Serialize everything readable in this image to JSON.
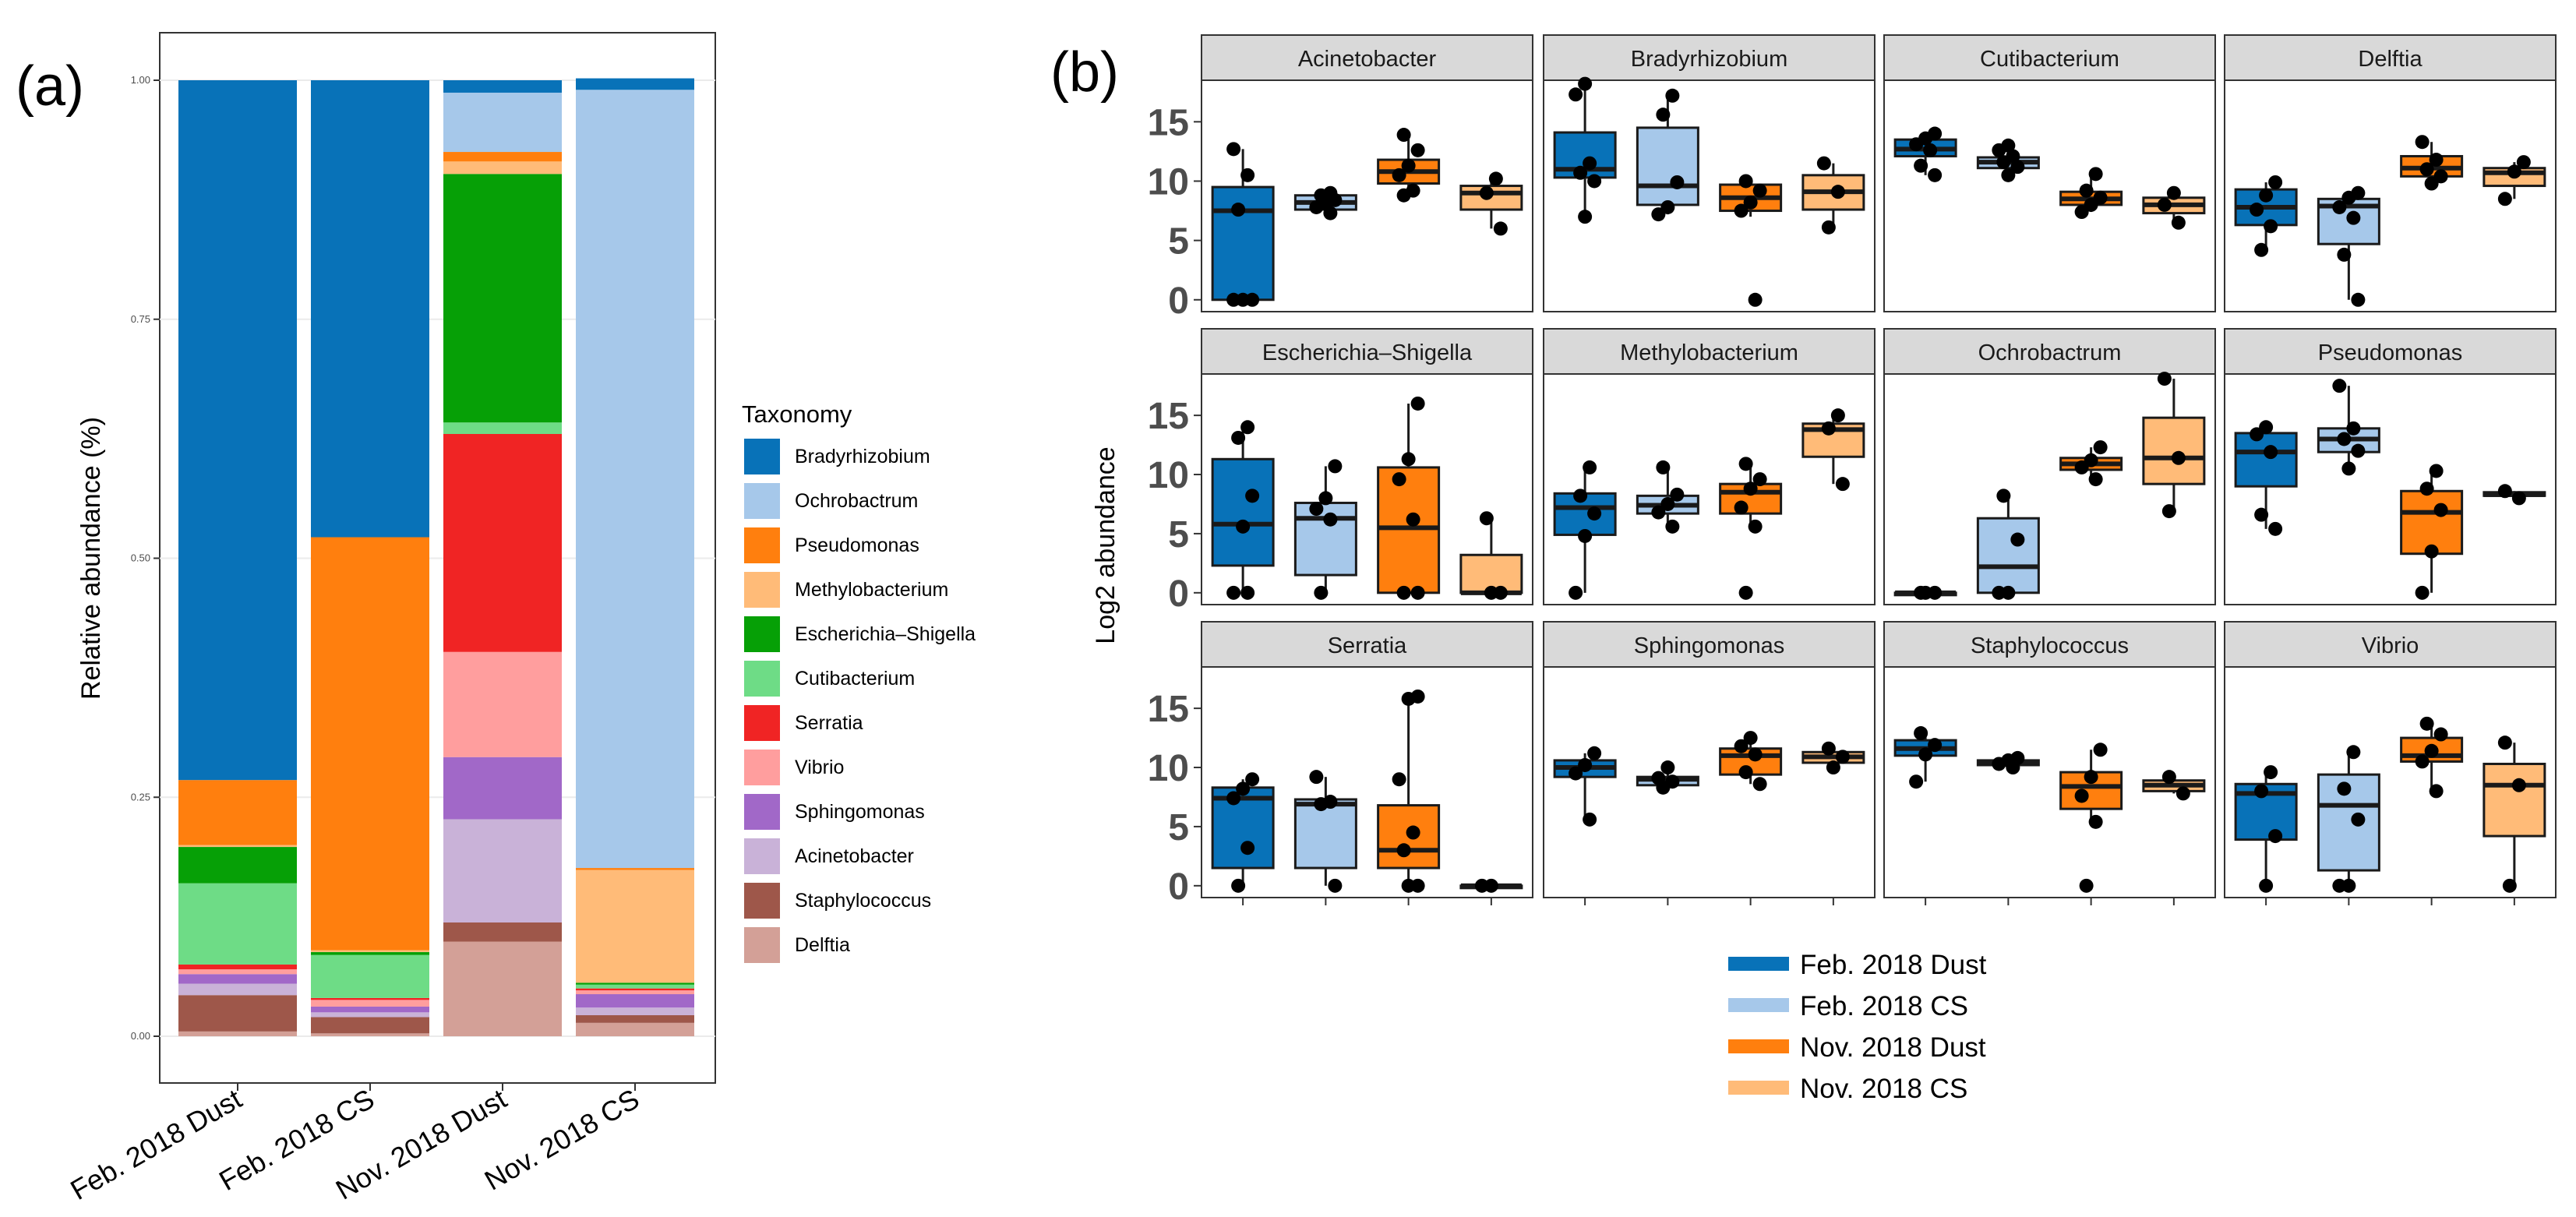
{
  "panel_labels": {
    "a": "(a)",
    "b": "(b)"
  },
  "chart_data": [
    {
      "type": "bar",
      "stacked": true,
      "ylabel": "Relative abundance (%)",
      "xlabel": "",
      "ylim": [
        0,
        1
      ],
      "yticks": [
        "0.00",
        "0.25",
        "0.50",
        "0.75",
        "1.00"
      ],
      "categories": [
        "Feb. 2018 Dust",
        "Feb. 2018 CS",
        "Nov. 2018 Dust",
        "Nov. 2018 CS"
      ],
      "legend_title": "Taxonomy",
      "legend_position": "right",
      "series": [
        {
          "name": "Bradyrhizobium",
          "color": "#0872B8",
          "values": [
            0.732,
            0.478,
            0.013,
            0.012
          ]
        },
        {
          "name": "Ochrobactrum",
          "color": "#A6C8EA",
          "values": [
            0.0,
            0.0,
            0.062,
            0.814
          ]
        },
        {
          "name": "Pseudomonas",
          "color": "#FF7F0E",
          "values": [
            0.068,
            0.432,
            0.01,
            0.002
          ]
        },
        {
          "name": "Methylobacterium",
          "color": "#FFBB78",
          "values": [
            0.002,
            0.002,
            0.013,
            0.118
          ]
        },
        {
          "name": "Escherichia–Shigella",
          "color": "#06A006",
          "values": [
            0.038,
            0.003,
            0.26,
            0.002
          ]
        },
        {
          "name": "Cutibacterium",
          "color": "#6EDC86",
          "values": [
            0.085,
            0.045,
            0.012,
            0.004
          ]
        },
        {
          "name": "Serratia",
          "color": "#F02424",
          "values": [
            0.005,
            0.002,
            0.228,
            0.002
          ]
        },
        {
          "name": "Vibrio",
          "color": "#FF9E9E",
          "values": [
            0.005,
            0.007,
            0.11,
            0.004
          ]
        },
        {
          "name": "Sphingomonas",
          "color": "#A168C8",
          "values": [
            0.01,
            0.006,
            0.065,
            0.014
          ]
        },
        {
          "name": "Acinetobacter",
          "color": "#C9B2D8",
          "values": [
            0.012,
            0.005,
            0.108,
            0.008
          ]
        },
        {
          "name": "Staphylococcus",
          "color": "#9E574A",
          "values": [
            0.038,
            0.017,
            0.02,
            0.008
          ]
        },
        {
          "name": "Delftia",
          "color": "#D3A097",
          "values": [
            0.005,
            0.003,
            0.099,
            0.014
          ]
        }
      ]
    },
    {
      "type": "box",
      "ylabel": "Log2 abundance",
      "ylim": [
        -1,
        18.5
      ],
      "yticks": [
        0,
        5,
        10,
        15
      ],
      "groups": [
        "Feb. 2018 Dust",
        "Feb. 2018 CS",
        "Nov. 2018 Dust",
        "Nov. 2018 CS"
      ],
      "group_colors": [
        "#0872B8",
        "#A6C8EA",
        "#FF7F0E",
        "#FFBB78"
      ],
      "legend_position": "bottom",
      "facets": [
        {
          "title": "Acinetobacter",
          "boxes": [
            {
              "q1": 0,
              "median": 7.5,
              "q3": 9.5,
              "low": 0,
              "high": 12.7,
              "points": [
                0,
                0,
                0,
                7.6,
                10.5,
                12.7
              ]
            },
            {
              "q1": 7.6,
              "median": 8.2,
              "q3": 8.8,
              "low": 7.3,
              "high": 9.0,
              "points": [
                7.3,
                7.8,
                8.1,
                8.4,
                8.8,
                9.0
              ]
            },
            {
              "q1": 9.8,
              "median": 10.8,
              "q3": 11.8,
              "low": 8.8,
              "high": 13.9,
              "points": [
                8.8,
                9.2,
                10.5,
                11.3,
                12.6,
                13.9
              ]
            },
            {
              "q1": 7.6,
              "median": 9.0,
              "q3": 9.6,
              "low": 6.0,
              "high": 10.2,
              "points": [
                6.0,
                9.0,
                10.2
              ]
            }
          ]
        },
        {
          "title": "Bradyrhizobium",
          "boxes": [
            {
              "q1": 10.3,
              "median": 11.0,
              "q3": 14.1,
              "low": 7.0,
              "high": 18.2,
              "points": [
                7.0,
                10.0,
                10.7,
                11.5,
                17.3,
                18.2
              ]
            },
            {
              "q1": 8.0,
              "median": 9.6,
              "q3": 14.5,
              "low": 7.2,
              "high": 17.2,
              "points": [
                7.2,
                7.8,
                9.9,
                15.6,
                17.2
              ]
            },
            {
              "q1": 7.5,
              "median": 8.6,
              "q3": 9.7,
              "low": 7.0,
              "high": 10.0,
              "points": [
                0,
                7.5,
                8.2,
                9.2,
                10.0
              ]
            },
            {
              "q1": 7.6,
              "median": 9.1,
              "q3": 10.5,
              "low": 6.1,
              "high": 11.5,
              "points": [
                6.1,
                9.1,
                11.5
              ]
            }
          ]
        },
        {
          "title": "Cutibacterium",
          "boxes": [
            {
              "q1": 12.1,
              "median": 12.7,
              "q3": 13.5,
              "low": 10.5,
              "high": 14.0,
              "points": [
                10.5,
                11.3,
                12.6,
                13.1,
                13.6,
                14.0
              ]
            },
            {
              "q1": 11.1,
              "median": 11.6,
              "q3": 12.0,
              "low": 10.5,
              "high": 13.0,
              "points": [
                10.5,
                11.2,
                11.6,
                12.1,
                12.6,
                13.0
              ]
            },
            {
              "q1": 8.0,
              "median": 8.5,
              "q3": 9.1,
              "low": 7.4,
              "high": 10.6,
              "points": [
                7.4,
                8.0,
                8.6,
                9.2,
                10.6
              ]
            },
            {
              "q1": 7.3,
              "median": 8.0,
              "q3": 8.6,
              "low": 6.5,
              "high": 9.0,
              "points": [
                6.5,
                8.0,
                9.0
              ]
            }
          ]
        },
        {
          "title": "Delftia",
          "boxes": [
            {
              "q1": 6.3,
              "median": 7.8,
              "q3": 9.3,
              "low": 4.2,
              "high": 9.9,
              "points": [
                4.2,
                6.2,
                7.6,
                8.8,
                9.9
              ]
            },
            {
              "q1": 4.7,
              "median": 7.9,
              "q3": 8.5,
              "low": 0,
              "high": 9.0,
              "points": [
                0,
                3.8,
                6.9,
                7.8,
                8.6,
                9.0
              ]
            },
            {
              "q1": 10.4,
              "median": 11.1,
              "q3": 12.1,
              "low": 9.8,
              "high": 13.3,
              "points": [
                9.8,
                10.4,
                11.0,
                11.8,
                13.3
              ]
            },
            {
              "q1": 9.6,
              "median": 10.7,
              "q3": 11.1,
              "low": 8.5,
              "high": 11.6,
              "points": [
                8.5,
                10.8,
                11.6
              ]
            }
          ]
        },
        {
          "title": "Escherichia–Shigella",
          "boxes": [
            {
              "q1": 2.3,
              "median": 5.8,
              "q3": 11.3,
              "low": 0,
              "high": 14.0,
              "points": [
                0,
                0,
                5.6,
                8.2,
                13.1,
                14.0
              ]
            },
            {
              "q1": 1.5,
              "median": 6.3,
              "q3": 7.6,
              "low": 0,
              "high": 10.7,
              "points": [
                0,
                6.2,
                7.1,
                8.0,
                10.7
              ]
            },
            {
              "q1": 0,
              "median": 5.5,
              "q3": 10.6,
              "low": 0,
              "high": 16.0,
              "points": [
                0,
                0,
                6.2,
                9.6,
                11.3,
                16.0
              ]
            },
            {
              "q1": 0,
              "median": 0,
              "q3": 3.2,
              "low": 0,
              "high": 6.3,
              "points": [
                0,
                0,
                6.3
              ]
            }
          ]
        },
        {
          "title": "Methylobacterium",
          "boxes": [
            {
              "q1": 4.9,
              "median": 7.2,
              "q3": 8.4,
              "low": 0,
              "high": 10.6,
              "points": [
                0,
                4.8,
                6.7,
                8.2,
                10.6
              ]
            },
            {
              "q1": 6.7,
              "median": 7.4,
              "q3": 8.2,
              "low": 5.6,
              "high": 10.6,
              "points": [
                5.6,
                6.8,
                7.5,
                8.3,
                10.6
              ]
            },
            {
              "q1": 6.7,
              "median": 8.5,
              "q3": 9.2,
              "low": 5.6,
              "high": 10.9,
              "points": [
                0,
                5.6,
                7.2,
                8.8,
                9.6,
                10.9
              ]
            },
            {
              "q1": 11.5,
              "median": 13.8,
              "q3": 14.3,
              "low": 9.2,
              "high": 15.0,
              "points": [
                9.2,
                13.9,
                15.0
              ]
            }
          ]
        },
        {
          "title": "Ochrobactrum",
          "boxes": [
            {
              "q1": 0,
              "median": 0,
              "q3": 0,
              "low": 0,
              "high": 0,
              "points": [
                0,
                0,
                0
              ]
            },
            {
              "q1": 0,
              "median": 2.2,
              "q3": 6.3,
              "low": 0,
              "high": 8.2,
              "points": [
                0,
                0,
                4.5,
                8.2
              ]
            },
            {
              "q1": 10.4,
              "median": 10.9,
              "q3": 11.4,
              "low": 9.6,
              "high": 12.3,
              "points": [
                9.6,
                10.6,
                11.2,
                12.3
              ]
            },
            {
              "q1": 9.2,
              "median": 11.4,
              "q3": 14.8,
              "low": 6.9,
              "high": 18.1,
              "points": [
                6.9,
                11.4,
                18.1
              ]
            }
          ]
        },
        {
          "title": "Pseudomonas",
          "boxes": [
            {
              "q1": 9.0,
              "median": 11.9,
              "q3": 13.5,
              "low": 5.4,
              "high": 14.0,
              "points": [
                5.4,
                6.6,
                11.9,
                13.4,
                14.0
              ]
            },
            {
              "q1": 11.9,
              "median": 13.0,
              "q3": 13.9,
              "low": 10.5,
              "high": 17.5,
              "points": [
                10.5,
                12.0,
                13.0,
                13.9,
                17.5
              ]
            },
            {
              "q1": 3.3,
              "median": 6.8,
              "q3": 8.6,
              "low": 0,
              "high": 10.3,
              "points": [
                0,
                3.5,
                7.0,
                8.8,
                10.3
              ]
            },
            {
              "q1": 8.2,
              "median": 8.3,
              "q3": 8.5,
              "low": 8.0,
              "high": 8.6,
              "points": [
                8.0,
                8.6
              ]
            }
          ]
        },
        {
          "title": "Serratia",
          "boxes": [
            {
              "q1": 1.5,
              "median": 7.4,
              "q3": 8.3,
              "low": 0,
              "high": 9.0,
              "points": [
                0,
                3.2,
                7.4,
                8.2,
                9.0
              ]
            },
            {
              "q1": 1.5,
              "median": 6.9,
              "q3": 7.3,
              "low": 0,
              "high": 9.2,
              "points": [
                0,
                6.9,
                7.1,
                9.2
              ]
            },
            {
              "q1": 1.5,
              "median": 3.0,
              "q3": 6.8,
              "low": 0,
              "high": 16.0,
              "points": [
                0,
                0,
                3.0,
                4.5,
                9.0,
                15.8,
                16.0
              ]
            },
            {
              "q1": 0,
              "median": 0,
              "q3": 0,
              "low": 0,
              "high": 0,
              "points": [
                0,
                0
              ]
            }
          ]
        },
        {
          "title": "Sphingomonas",
          "boxes": [
            {
              "q1": 9.2,
              "median": 10.0,
              "q3": 10.6,
              "low": 5.6,
              "high": 11.2,
              "points": [
                5.6,
                9.5,
                10.2,
                11.2
              ]
            },
            {
              "q1": 8.5,
              "median": 9.0,
              "q3": 9.2,
              "low": 8.3,
              "high": 10.0,
              "points": [
                8.3,
                8.8,
                9.1,
                10.0
              ]
            },
            {
              "q1": 9.4,
              "median": 11.0,
              "q3": 11.6,
              "low": 8.6,
              "high": 12.5,
              "points": [
                8.6,
                9.6,
                11.1,
                11.8,
                12.5
              ]
            },
            {
              "q1": 10.4,
              "median": 10.9,
              "q3": 11.3,
              "low": 10.0,
              "high": 11.6,
              "points": [
                10.0,
                10.9,
                11.6
              ]
            }
          ]
        },
        {
          "title": "Staphylococcus",
          "boxes": [
            {
              "q1": 11.0,
              "median": 11.6,
              "q3": 12.3,
              "low": 8.8,
              "high": 12.9,
              "points": [
                8.8,
                11.1,
                11.9,
                12.9
              ]
            },
            {
              "q1": 10.2,
              "median": 10.4,
              "q3": 10.6,
              "low": 10.0,
              "high": 10.8,
              "points": [
                10.0,
                10.3,
                10.6,
                10.8
              ]
            },
            {
              "q1": 6.5,
              "median": 8.4,
              "q3": 9.6,
              "low": 5.4,
              "high": 11.5,
              "points": [
                0,
                5.4,
                7.6,
                9.2,
                11.5
              ]
            },
            {
              "q1": 8.0,
              "median": 8.5,
              "q3": 8.9,
              "low": 7.8,
              "high": 9.2,
              "points": [
                7.8,
                9.2
              ]
            }
          ]
        },
        {
          "title": "Vibrio",
          "boxes": [
            {
              "q1": 3.9,
              "median": 7.8,
              "q3": 8.6,
              "low": 0,
              "high": 9.6,
              "points": [
                0,
                4.2,
                8.0,
                9.6
              ]
            },
            {
              "q1": 1.3,
              "median": 6.8,
              "q3": 9.4,
              "low": 0,
              "high": 11.3,
              "points": [
                0,
                0,
                5.6,
                8.2,
                11.3
              ]
            },
            {
              "q1": 10.5,
              "median": 11.0,
              "q3": 12.5,
              "low": 8.0,
              "high": 13.7,
              "points": [
                8.0,
                10.5,
                11.4,
                12.8,
                13.7
              ]
            },
            {
              "q1": 4.2,
              "median": 8.5,
              "q3": 10.3,
              "low": 0,
              "high": 12.1,
              "points": [
                0,
                8.5,
                12.1
              ]
            }
          ]
        }
      ]
    }
  ]
}
